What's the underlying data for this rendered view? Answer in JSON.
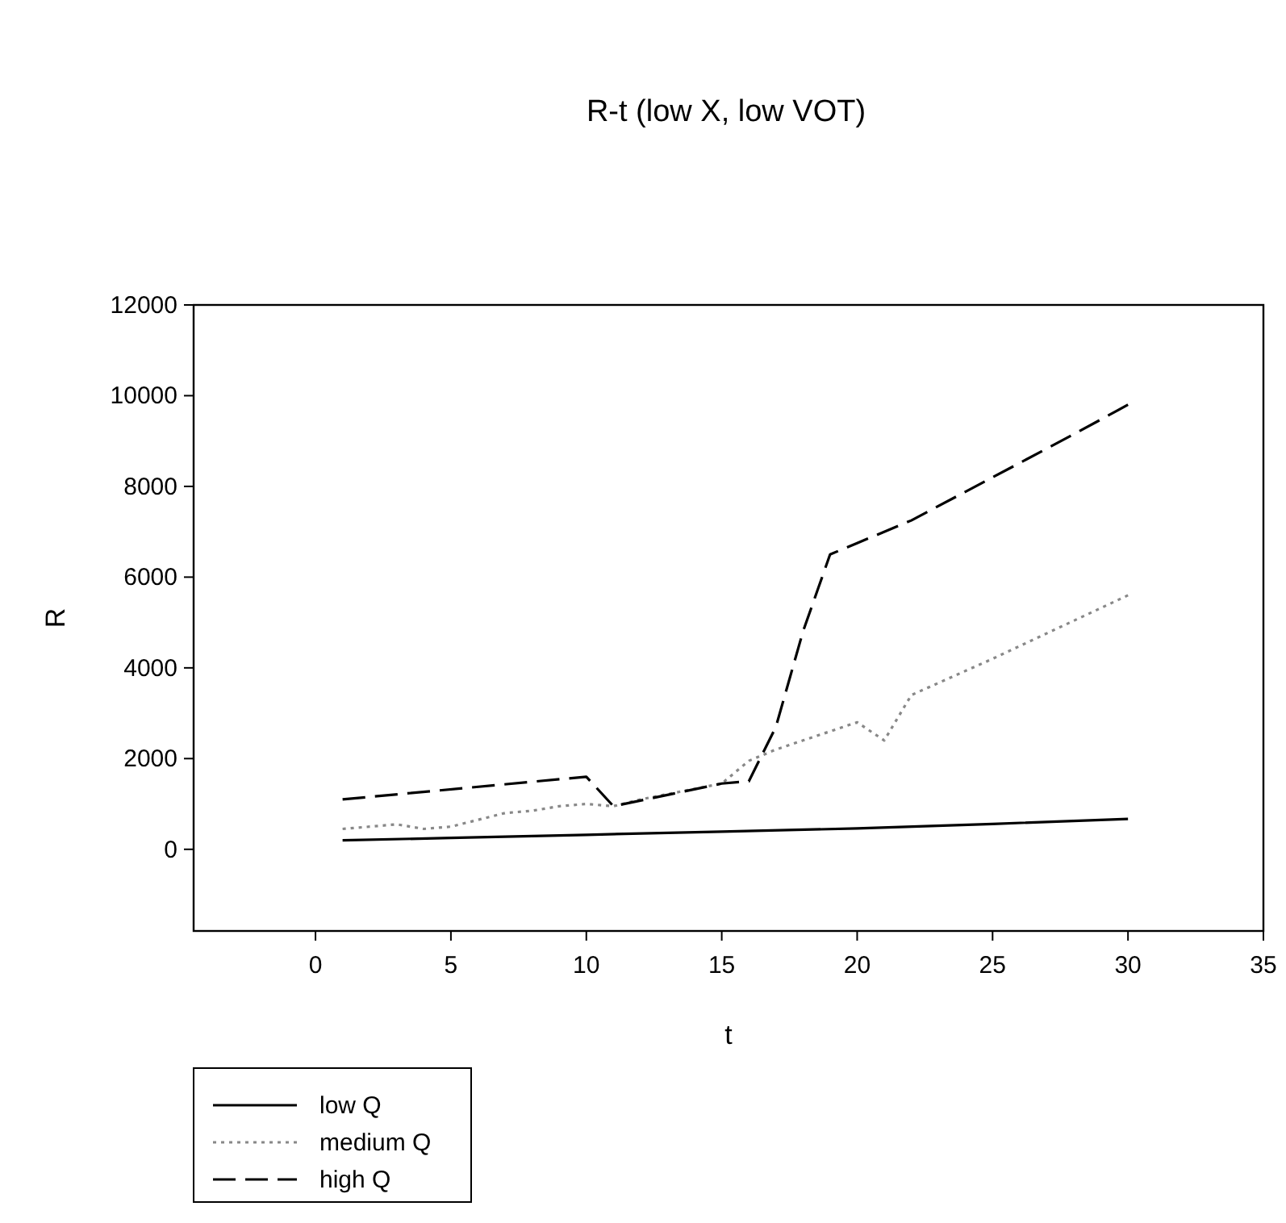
{
  "chart_data": {
    "type": "line",
    "title": "R-t (low X, low VOT)",
    "xlabel": "t",
    "ylabel": "R",
    "xlim": [
      -4.5,
      35
    ],
    "xticks": [
      0,
      5,
      10,
      15,
      20,
      25,
      30,
      35
    ],
    "ylim": [
      -1800,
      12000
    ],
    "yticks": [
      0,
      2000,
      4000,
      6000,
      8000,
      10000,
      12000
    ],
    "grid": false,
    "legend": "bottom left",
    "series": [
      {
        "name": "low Q",
        "color": "#000000",
        "line_style": "solid",
        "x": [
          1,
          5,
          10,
          15,
          20,
          25,
          30
        ],
        "values": [
          200,
          250,
          320,
          390,
          460,
          560,
          670
        ]
      },
      {
        "name": "medium Q",
        "color": "#888888",
        "line_style": "dotted",
        "x": [
          1,
          3,
          4,
          5,
          6,
          7,
          8,
          9,
          10,
          11,
          12,
          15,
          16,
          17,
          18,
          19,
          20,
          21,
          22,
          25,
          30
        ],
        "values": [
          450,
          550,
          450,
          500,
          650,
          800,
          850,
          950,
          1000,
          950,
          1100,
          1450,
          1950,
          2200,
          2400,
          2600,
          2800,
          2400,
          3400,
          4200,
          5600
        ]
      },
      {
        "name": "high Q",
        "color": "#000000",
        "line_style": "dashed",
        "x": [
          1,
          10,
          11,
          15,
          16,
          17,
          18,
          19,
          20,
          22,
          25,
          28,
          30
        ],
        "values": [
          1100,
          1600,
          950,
          1450,
          1500,
          2700,
          4800,
          6500,
          6750,
          7250,
          8200,
          9150,
          9800
        ]
      }
    ]
  }
}
